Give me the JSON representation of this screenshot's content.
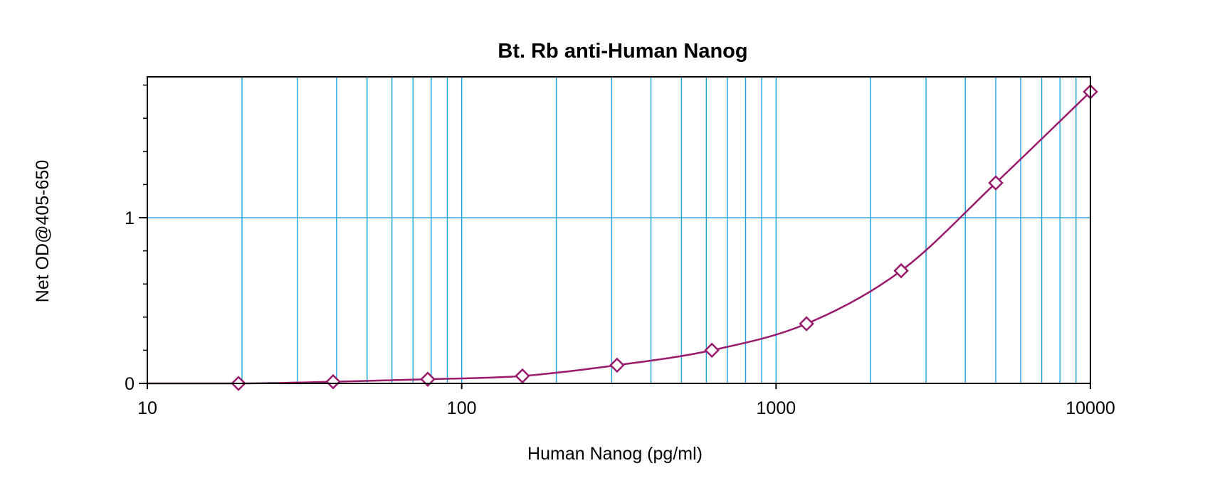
{
  "chart_data": {
    "type": "line",
    "title": "Bt. Rb anti-Human Nanog",
    "xlabel": "Human Nanog (pg/ml)",
    "ylabel": "Net OD@405-650",
    "x_scale": "log",
    "xlim": [
      10,
      10000
    ],
    "ylim": [
      0,
      1.85
    ],
    "x_ticks": [
      10,
      100,
      1000,
      10000
    ],
    "x_tick_labels": [
      "10",
      "100",
      "1000",
      "10000"
    ],
    "y_ticks": [
      0,
      1
    ],
    "y_tick_labels": [
      "0",
      "1"
    ],
    "y_minor_ticks": [
      0.2,
      0.4,
      0.6,
      0.8,
      1.2,
      1.4,
      1.6,
      1.8
    ],
    "grid": true,
    "legend": "none",
    "series": [
      {
        "x": [
          19.5,
          39,
          78,
          156,
          312,
          625,
          1250,
          2500,
          5000,
          10000
        ],
        "y": [
          0.0,
          0.01,
          0.025,
          0.045,
          0.11,
          0.2,
          0.36,
          0.68,
          1.21,
          1.76
        ],
        "marker": "diamond",
        "fit_curve": true
      }
    ],
    "colors": {
      "series": "#99196b",
      "grid": "#1aa3e0",
      "axes": "#000000"
    }
  }
}
